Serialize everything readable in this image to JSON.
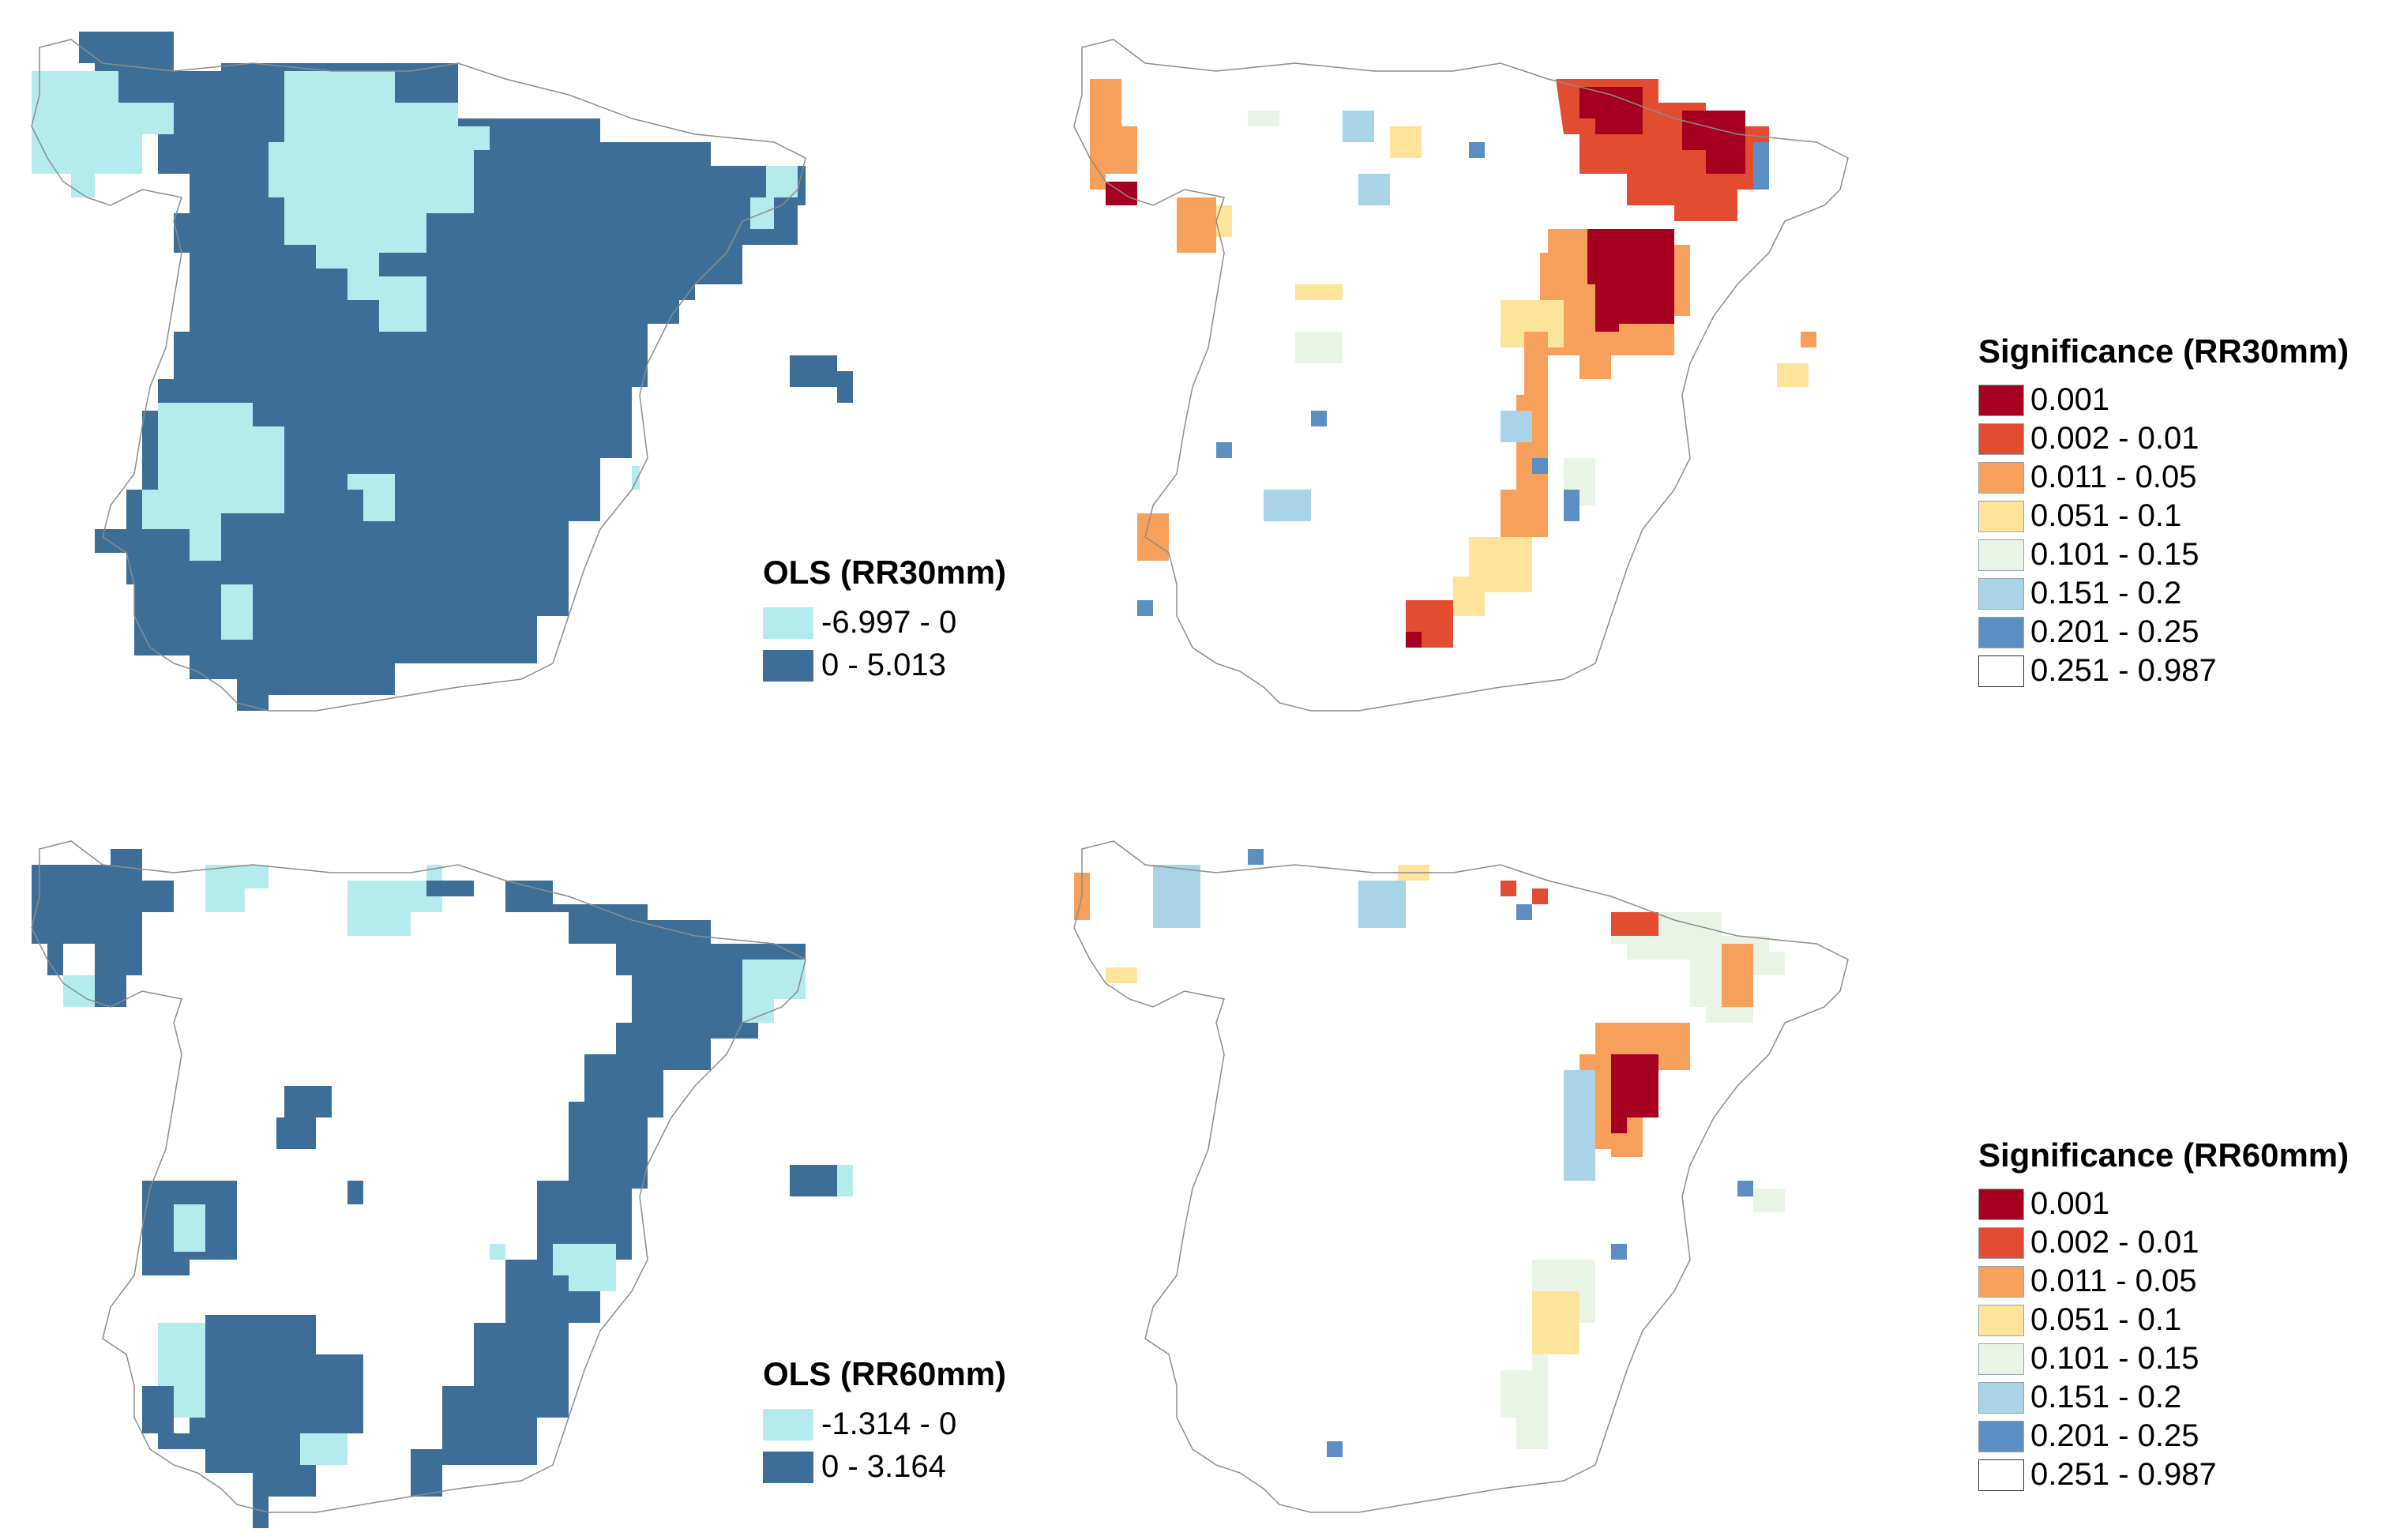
{
  "maps": [
    {
      "id": "ols-rr30mm",
      "legend_title": "OLS (RR30mm)",
      "classes": [
        {
          "label": "-6.997 - 0",
          "color": "#b4ecee"
        },
        {
          "label": "0 - 5.013",
          "color": "#3c6e97"
        }
      ]
    },
    {
      "id": "significance-rr30mm",
      "legend_title": "Significance (RR30mm)",
      "classes": [
        {
          "label": "0.001",
          "color": "#a5001f"
        },
        {
          "label": "0.002 - 0.01",
          "color": "#e24c31"
        },
        {
          "label": "0.011 - 0.05",
          "color": "#f7a05c"
        },
        {
          "label": "0.051 - 0.1",
          "color": "#fde49a"
        },
        {
          "label": "0.101 - 0.15",
          "color": "#e9f4e6"
        },
        {
          "label": "0.151 - 0.2",
          "color": "#a9d3e6"
        },
        {
          "label": "0.201 - 0.25",
          "color": "#5b8fc4"
        },
        {
          "label": "0.251 - 0.987",
          "color": "#ffffff"
        }
      ]
    },
    {
      "id": "ols-rr60mm",
      "legend_title": "OLS (RR60mm)",
      "classes": [
        {
          "label": "-1.314 - 0",
          "color": "#b4ecee"
        },
        {
          "label": "0 - 3.164",
          "color": "#3c6e97"
        }
      ]
    },
    {
      "id": "significance-rr60mm",
      "legend_title": "Significance (RR60mm)",
      "classes": [
        {
          "label": "0.001",
          "color": "#a5001f"
        },
        {
          "label": "0.002 - 0.01",
          "color": "#e24c31"
        },
        {
          "label": "0.011 - 0.05",
          "color": "#f7a05c"
        },
        {
          "label": "0.051 - 0.1",
          "color": "#fde49a"
        },
        {
          "label": "0.101 - 0.15",
          "color": "#e9f4e6"
        },
        {
          "label": "0.151 - 0.2",
          "color": "#a9d3e6"
        },
        {
          "label": "0.201 - 0.25",
          "color": "#5b8fc4"
        },
        {
          "label": "0.251 - 0.987",
          "color": "#ffffff"
        }
      ]
    }
  ]
}
